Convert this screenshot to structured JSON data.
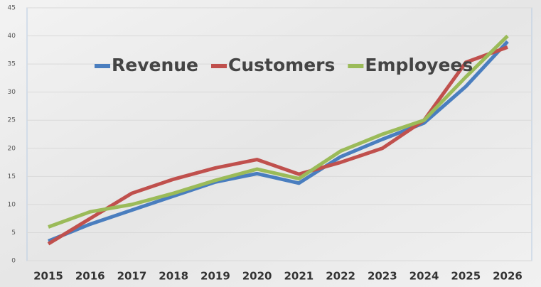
{
  "chart_data": {
    "type": "line",
    "categories": [
      "2015",
      "2016",
      "2017",
      "2018",
      "2019",
      "2020",
      "2021",
      "2022",
      "2023",
      "2024",
      "2025",
      "2026"
    ],
    "series": [
      {
        "name": "Revenue",
        "color": "#4a7ebf",
        "values": [
          3.5,
          6.5,
          9,
          11.5,
          14,
          15.5,
          13.8,
          18.5,
          21.6,
          24.5,
          31,
          39
        ]
      },
      {
        "name": "Customers",
        "color": "#c0504d",
        "values": [
          3,
          7.5,
          12,
          14.5,
          16.5,
          18,
          15.4,
          17.5,
          20,
          25,
          35.3,
          38
        ]
      },
      {
        "name": "Employees",
        "color": "#9bbb59",
        "values": [
          6,
          8.7,
          10,
          12,
          14.3,
          16.3,
          14.6,
          19.5,
          22.5,
          25,
          32.7,
          40
        ]
      }
    ],
    "ylim": [
      0,
      45
    ],
    "yticks": [
      0,
      5,
      10,
      15,
      20,
      25,
      30,
      35,
      40,
      45
    ],
    "grid": true,
    "legend": "top"
  }
}
